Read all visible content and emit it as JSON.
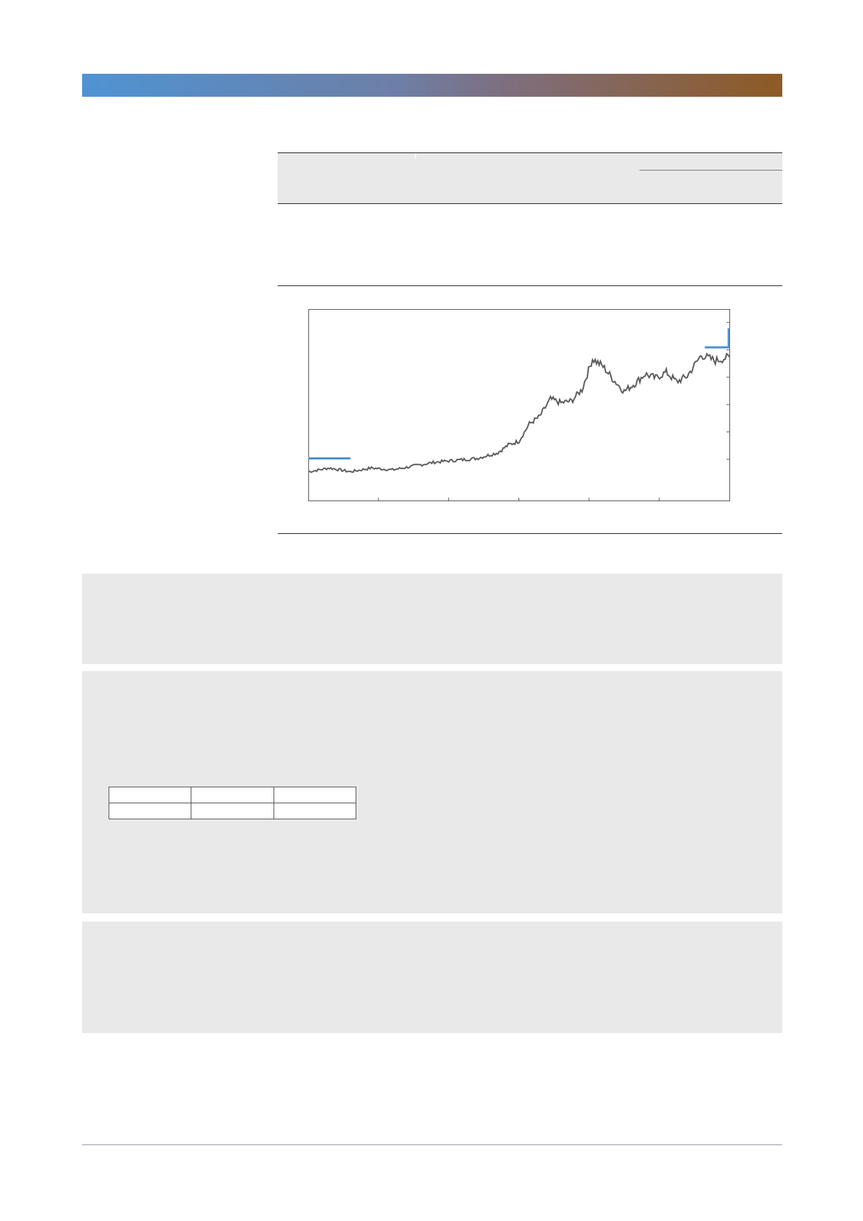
{
  "colors": {
    "band_left": "#4f93d3",
    "band_right": "#8e5a24",
    "price_line": "#5b5b5b",
    "marker": "#4a8fd0"
  },
  "table": {
    "rows": [
      [
        "",
        "",
        ""
      ],
      [
        "",
        "",
        ""
      ]
    ]
  },
  "chart_data": {
    "type": "line",
    "title": "",
    "xlabel": "",
    "ylabel": "",
    "x_ticks": 6,
    "y_ticks_right": 6,
    "xlim": [
      0,
      600
    ],
    "ylim": [
      0,
      100
    ],
    "grid": false,
    "series": [
      {
        "anchors": [
          [
            0,
            15
          ],
          [
            30,
            17
          ],
          [
            60,
            15
          ],
          [
            90,
            17
          ],
          [
            120,
            16
          ],
          [
            150,
            18
          ],
          [
            180,
            20
          ],
          [
            210,
            21
          ],
          [
            240,
            22
          ],
          [
            270,
            25
          ],
          [
            285,
            29
          ],
          [
            300,
            31
          ],
          [
            315,
            40
          ],
          [
            330,
            44
          ],
          [
            345,
            53
          ],
          [
            360,
            51
          ],
          [
            375,
            52
          ],
          [
            390,
            58
          ],
          [
            405,
            74
          ],
          [
            420,
            70
          ],
          [
            435,
            63
          ],
          [
            450,
            57
          ],
          [
            465,
            61
          ],
          [
            480,
            66
          ],
          [
            495,
            64
          ],
          [
            510,
            67
          ],
          [
            525,
            62
          ],
          [
            540,
            65
          ],
          [
            560,
            76
          ],
          [
            580,
            73
          ],
          [
            600,
            75
          ]
        ]
      }
    ],
    "markers": [
      {
        "x_start": 0,
        "x_end": 60,
        "y": 22
      },
      {
        "x_start": 565,
        "x_end": 600,
        "y": 80
      },
      {
        "x_start": 600,
        "x_end": 600,
        "y_start": 80,
        "y_end": 90
      }
    ]
  }
}
